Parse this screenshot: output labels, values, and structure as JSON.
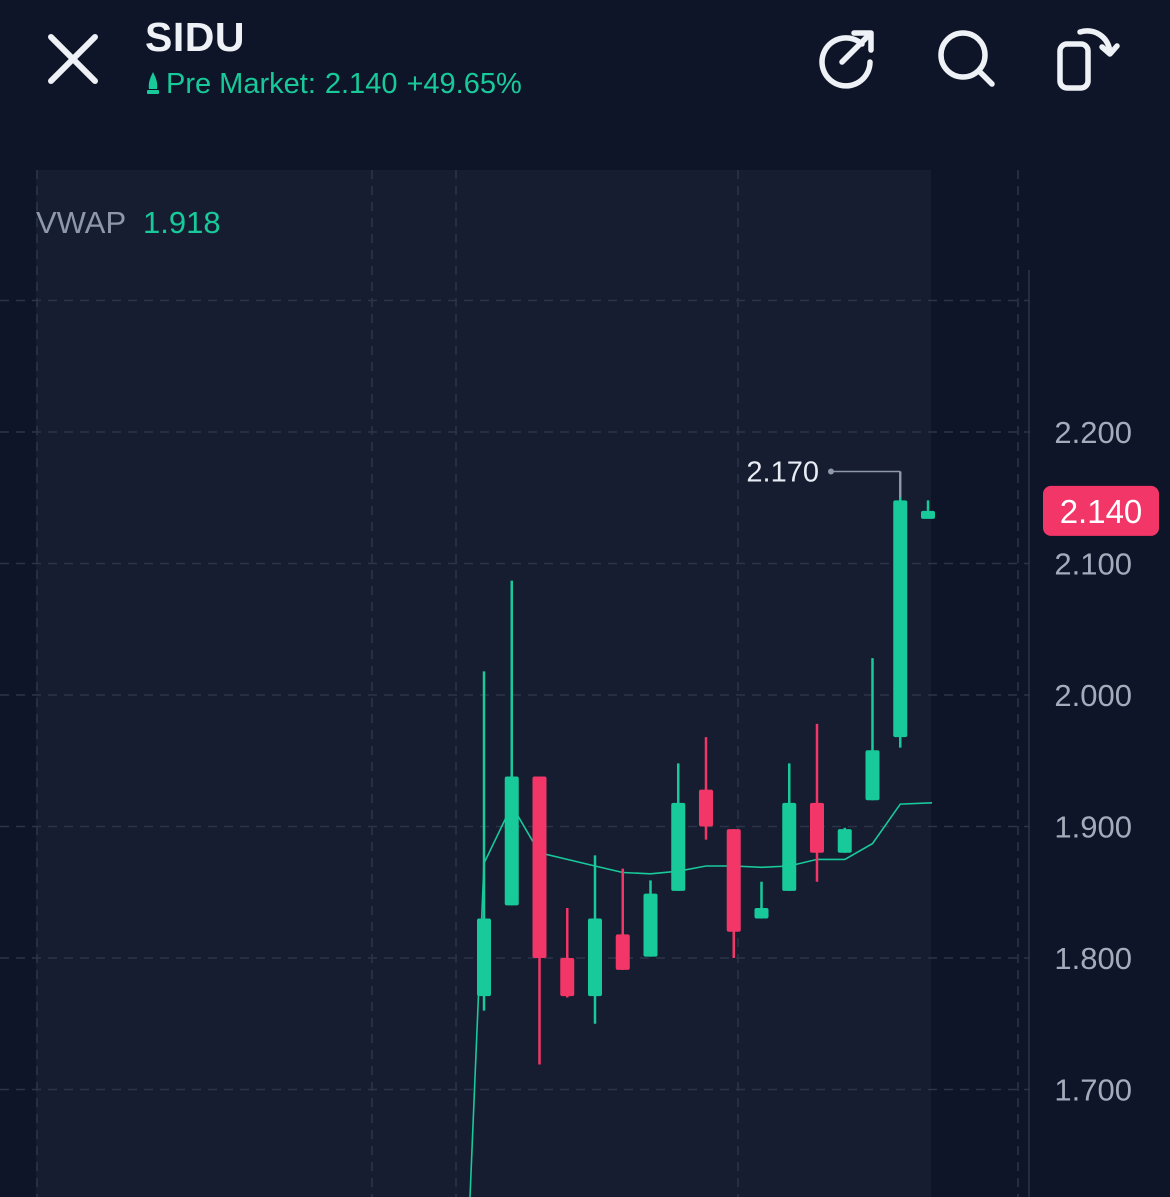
{
  "header": {
    "ticker": "SIDU",
    "session_label": "Pre Market:",
    "price": "2.140",
    "change": "+49.65%",
    "icons": [
      "close-icon",
      "external-link-icon",
      "search-icon",
      "rotate-screen-icon"
    ]
  },
  "indicator": {
    "name": "VWAP",
    "value": "1.918"
  },
  "colors": {
    "up": "#18c99a",
    "down": "#f23668",
    "background": "#0f1528",
    "session_panel": "#161d31"
  },
  "chart_data": {
    "type": "candlestick",
    "ylim": [
      1.64,
      2.385
    ],
    "y_ticks": [
      "2.200",
      "2.100",
      "2.000",
      "1.900",
      "1.800",
      "1.700"
    ],
    "last_price": "2.140",
    "high_annotation": "2.170",
    "grid": true,
    "candles": [
      {
        "o": 1.771,
        "h": 2.018,
        "l": 1.76,
        "c": 1.83
      },
      {
        "o": 1.84,
        "h": 2.087,
        "l": 1.84,
        "c": 1.938
      },
      {
        "o": 1.938,
        "h": 1.938,
        "l": 1.719,
        "c": 1.8
      },
      {
        "o": 1.8,
        "h": 1.838,
        "l": 1.77,
        "c": 1.771
      },
      {
        "o": 1.771,
        "h": 1.878,
        "l": 1.75,
        "c": 1.83
      },
      {
        "o": 1.818,
        "h": 1.868,
        "l": 1.791,
        "c": 1.791
      },
      {
        "o": 1.801,
        "h": 1.859,
        "l": 1.801,
        "c": 1.849
      },
      {
        "o": 1.851,
        "h": 1.948,
        "l": 1.851,
        "c": 1.918
      },
      {
        "o": 1.928,
        "h": 1.968,
        "l": 1.89,
        "c": 1.9
      },
      {
        "o": 1.898,
        "h": 1.898,
        "l": 1.8,
        "c": 1.82
      },
      {
        "o": 1.83,
        "h": 1.858,
        "l": 1.83,
        "c": 1.838
      },
      {
        "o": 1.851,
        "h": 1.948,
        "l": 1.851,
        "c": 1.918
      },
      {
        "o": 1.918,
        "h": 1.978,
        "l": 1.858,
        "c": 1.88
      },
      {
        "o": 1.88,
        "h": 1.899,
        "l": 1.88,
        "c": 1.898
      },
      {
        "o": 1.92,
        "h": 2.028,
        "l": 1.92,
        "c": 1.958
      },
      {
        "o": 1.968,
        "h": 2.17,
        "l": 1.96,
        "c": 2.148
      },
      {
        "o": 2.14,
        "h": 2.148,
        "l": 2.14,
        "c": 2.14
      }
    ],
    "vwap": [
      1.7,
      1.872,
      1.916,
      1.88,
      1.875,
      1.87,
      1.865,
      1.864,
      1.866,
      1.87,
      1.87,
      1.869,
      1.87,
      1.875,
      1.875,
      1.887,
      1.917,
      1.918
    ]
  }
}
